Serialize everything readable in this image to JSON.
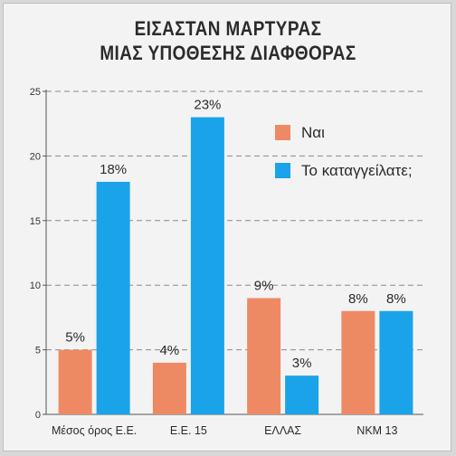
{
  "chart_data": {
    "type": "bar",
    "title_lines": [
      "ΕΙΣΑΣΤΑΝ ΜΑΡΤΥΡΑΣ",
      "ΜΙΑΣ ΥΠΟΘΕΣΗΣ ΔΙΑΦΘΟΡΑΣ"
    ],
    "categories": [
      "Μέσος όρος Ε.Ε.",
      "Ε.Ε. 15",
      "ΕΛΛΑΣ",
      "ΝΚΜ 13"
    ],
    "series": [
      {
        "name": "Ναι",
        "values": [
          5,
          4,
          9,
          8
        ],
        "labels": [
          "5%",
          "4%",
          "9%",
          "8%"
        ],
        "color": "#ee8a63"
      },
      {
        "name": "Το καταγγείλατε;",
        "values": [
          18,
          23,
          3,
          8
        ],
        "labels": [
          "18%",
          "23%",
          "3%",
          "8%"
        ],
        "color": "#1aa3e8"
      }
    ],
    "ylim": [
      0,
      25
    ],
    "yticks": [
      0,
      5,
      10,
      15,
      20,
      25
    ],
    "grid": true,
    "legend_position": "top-right"
  }
}
